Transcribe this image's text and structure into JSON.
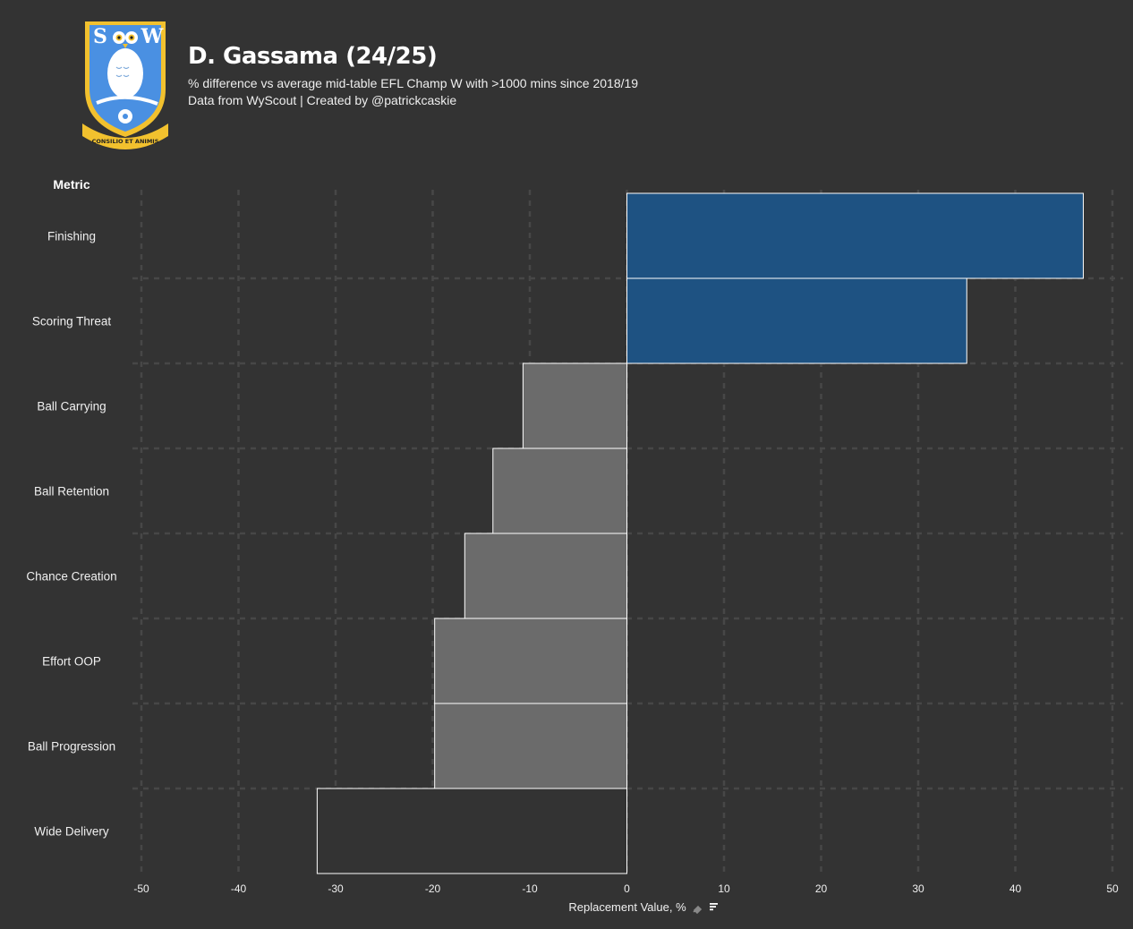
{
  "header": {
    "title": "D. Gassama (24/25)",
    "subtitle": "% difference vs average mid-table EFL Champ W with >1000 mins since 2018/19",
    "credit": "Data from WyScout | Created by @patrickcaskie",
    "logo": {
      "crest_letters": "S W",
      "motto": "CONSILIO ET ANIMIS",
      "colors": {
        "shield": "#4a90e2",
        "border": "#f2c12e",
        "owl": "#ffffff"
      }
    }
  },
  "colors": {
    "background": "#333333",
    "positive": "#1e5282",
    "negative": "#6b6b6b",
    "bar_edge": "#ffffff",
    "grid": "#474747",
    "text": "#f0f0f0"
  },
  "chart_data": {
    "type": "bar",
    "orientation": "horizontal",
    "title": "D. Gassama (24/25)",
    "row_header": "Metric",
    "xlabel": "Replacement Value, %",
    "xlim": [
      -50,
      50
    ],
    "xticks": [
      -50,
      -40,
      -30,
      -20,
      -10,
      0,
      10,
      20,
      30,
      40,
      50
    ],
    "grid": true,
    "categories": [
      "Finishing",
      "Scoring Threat",
      "Ball Carrying",
      "Ball Retention",
      "Chance Creation",
      "Effort OOP",
      "Ball Progression",
      "Wide Delivery"
    ],
    "values": [
      47,
      35,
      -10.7,
      -13.8,
      -16.7,
      -19.8,
      -19.8,
      -31.9
    ]
  },
  "footer_icons": [
    "pin-icon",
    "filter-icon"
  ]
}
